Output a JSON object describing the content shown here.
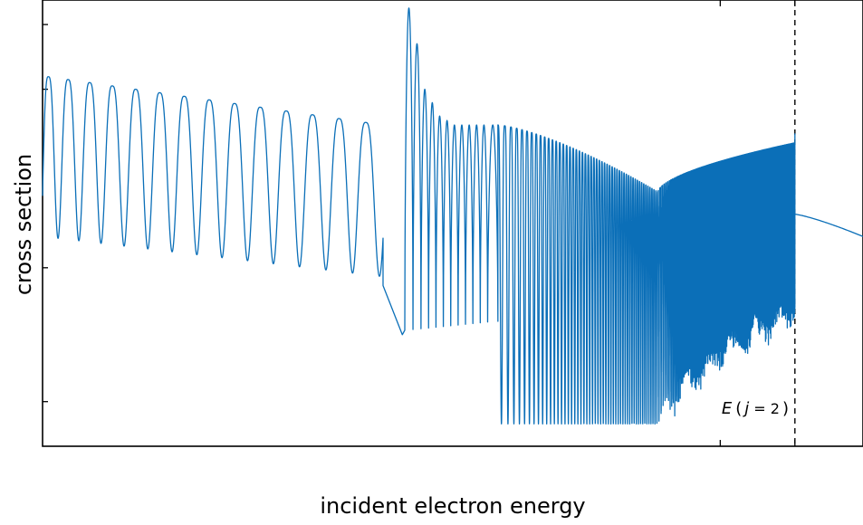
{
  "chart_data": {
    "type": "line",
    "title": "",
    "xlabel": "incident electron energy",
    "ylabel": "cross section",
    "xlim": [
      0,
      1
    ],
    "ylim": [
      0,
      1
    ],
    "xscale": "linear",
    "yscale": "log",
    "ticks_labeled": false,
    "grid": false,
    "legend": "none",
    "series_color": "#0b6fb8",
    "threshold": {
      "label_E": "E",
      "label_j": "j",
      "label_eq": "= 2",
      "x": 0.917,
      "style": "dashed"
    },
    "x_ticks": [
      0.826,
      0.917
    ],
    "y_ticks": [
      0.1,
      0.945,
      0.8,
      0.4
    ],
    "segments": [
      {
        "name": "low-energy regular oscillations",
        "x_range": [
          0.0,
          0.415
        ],
        "oscillations": 14,
        "upper_envelope": [
          0.83,
          0.72
        ],
        "lower_envelope": [
          0.47,
          0.38
        ]
      },
      {
        "name": "sharp resonance cluster",
        "x_range": [
          0.415,
          0.555
        ],
        "peaks": [
          0.982,
          0.902
        ],
        "minima": [
          0.26,
          0.28
        ]
      },
      {
        "name": "rising-frequency oscillations",
        "x_range": [
          0.555,
          0.75
        ],
        "upper_envelope": [
          0.72,
          0.57
        ],
        "lower_envelope": [
          0.27,
          0.05
        ]
      },
      {
        "name": "dense band below threshold",
        "x_range": [
          0.75,
          0.917
        ],
        "upper_envelope": [
          0.57,
          0.68
        ],
        "lower_envelope": [
          0.05,
          0.31
        ]
      },
      {
        "name": "smooth decay above threshold",
        "x_range": [
          0.917,
          1.0
        ],
        "y_range": [
          0.52,
          0.47
        ]
      }
    ]
  }
}
